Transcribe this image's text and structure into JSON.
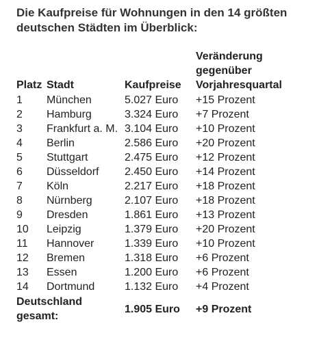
{
  "title": "Die Kaufpreise für Wohnungen in den 14 größten deutschen Städten im Überblick:",
  "table": {
    "headers": [
      "Platz",
      "Stadt",
      "Kaufpreise",
      "Veränderung gegenüber Vorjahresquartal"
    ],
    "rows": [
      [
        "1",
        "München",
        "5.027 Euro",
        "+15 Prozent"
      ],
      [
        "2",
        "Hamburg",
        "3.324 Euro",
        "+7 Prozent"
      ],
      [
        "3",
        "Frankfurt a. M.",
        "3.104 Euro",
        "+10 Prozent"
      ],
      [
        "4",
        "Berlin",
        "2.586 Euro",
        "+20 Prozent"
      ],
      [
        "5",
        "Stuttgart",
        "2.475 Euro",
        "+12 Prozent"
      ],
      [
        "6",
        "Düsseldorf",
        "2.450 Euro",
        "+14 Prozent"
      ],
      [
        "7",
        "Köln",
        "2.217 Euro",
        "+18 Prozent"
      ],
      [
        "8",
        "Nürnberg",
        "2.107 Euro",
        "+18 Prozent"
      ],
      [
        "9",
        "Dresden",
        "1.861 Euro",
        "+13 Prozent"
      ],
      [
        "10",
        "Leipzig",
        "1.379 Euro",
        "+20 Prozent"
      ],
      [
        "11",
        "Hannover",
        "1.339 Euro",
        "+10 Prozent"
      ],
      [
        "12",
        "Bremen",
        "1.318 Euro",
        "+6 Prozent"
      ],
      [
        "13",
        "Essen",
        "1.200 Euro",
        "+6 Prozent"
      ],
      [
        "14",
        "Dortmund",
        "1.132 Euro",
        "+4 Prozent"
      ]
    ],
    "total": [
      "Deutschland gesamt:",
      "1.905 Euro",
      "+9 Prozent"
    ]
  }
}
